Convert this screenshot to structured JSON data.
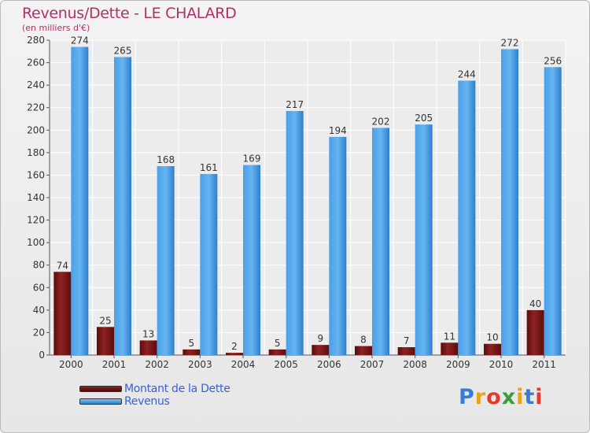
{
  "chart_data": {
    "type": "bar",
    "title": "Revenus/Dette - LE CHALARD",
    "subtitle": "(en milliers d'€)",
    "categories": [
      "2000",
      "2001",
      "2002",
      "2003",
      "2004",
      "2005",
      "2006",
      "2007",
      "2008",
      "2009",
      "2010",
      "2011"
    ],
    "series": [
      {
        "name": "Montant de la Dette",
        "color": "#7a1616",
        "values": [
          74,
          25,
          13,
          5,
          2,
          5,
          9,
          8,
          7,
          11,
          10,
          40
        ]
      },
      {
        "name": "Revenus",
        "color": "#4a9fe6",
        "values": [
          274,
          265,
          168,
          161,
          169,
          217,
          194,
          202,
          205,
          244,
          272,
          256
        ]
      }
    ],
    "ylim": [
      0,
      280
    ],
    "yticks": [
      0,
      20,
      40,
      60,
      80,
      100,
      120,
      140,
      160,
      180,
      200,
      220,
      240,
      260,
      280
    ],
    "grid": true,
    "legend_position": "bottom-left"
  },
  "logo": {
    "text": "Proxiti",
    "letter_colors": [
      "#3a7bd5",
      "#e8a317",
      "#e23b2e",
      "#3a9d3a",
      "#e8a317",
      "#3a7bd5",
      "#e23b2e"
    ]
  }
}
